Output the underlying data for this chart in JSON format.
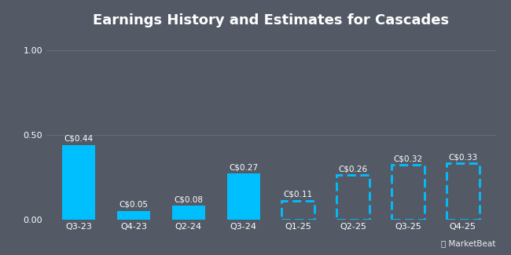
{
  "title": "Earnings History and Estimates for Cascades",
  "categories": [
    "Q3-23",
    "Q4-23",
    "Q2-24",
    "Q3-24",
    "Q1-25",
    "Q2-25",
    "Q3-25",
    "Q4-25"
  ],
  "values": [
    0.44,
    0.05,
    0.08,
    0.27,
    0.11,
    0.26,
    0.32,
    0.33
  ],
  "labels": [
    "C$0.44",
    "C$0.05",
    "C$0.08",
    "C$0.27",
    "C$0.11",
    "C$0.26",
    "C$0.32",
    "C$0.33"
  ],
  "is_estimate": [
    false,
    false,
    false,
    false,
    true,
    true,
    true,
    true
  ],
  "bar_color": "#00bfff",
  "estimate_edge_color": "#00bfff",
  "background_color": "#535a66",
  "plot_bg_color": "#535a66",
  "text_color": "#ffffff",
  "grid_color": "#666f7d",
  "ylim": [
    0,
    1.1
  ],
  "yticks": [
    0.0,
    0.5,
    1.0
  ],
  "title_fontsize": 13,
  "label_fontsize": 7.5,
  "tick_fontsize": 8,
  "watermark": "MarketBeat"
}
